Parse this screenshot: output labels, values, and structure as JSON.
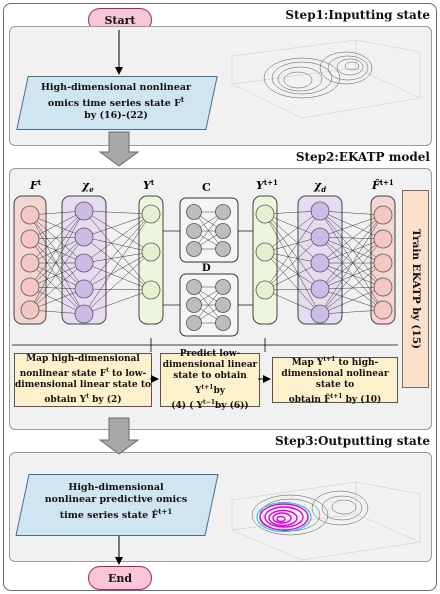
{
  "start_label": "Start",
  "end_label": "End",
  "step1": {
    "title": "Step1:Inputting state",
    "input_text": [
      "High-dimensional nonlinear",
      "omics time series state F",
      "by (16)-(22)"
    ],
    "input_sup": "t"
  },
  "step2": {
    "title": "Step2:EKATP model",
    "labels": {
      "ft": "F",
      "ft_sup": "t",
      "chi_e": "χ",
      "chi_e_sub": "e",
      "yt": "Y",
      "yt_sup": "t",
      "c": "C",
      "d": "D",
      "yt1": "Y",
      "yt1_sup": "t+1",
      "chi_d": "χ",
      "chi_d_sub": "d",
      "fhat": "F̂",
      "fhat_sup": "t+1"
    },
    "box1": [
      "Map high-dimensional",
      "nonlinear state F",
      "to low-",
      "dimensional linear state to",
      "obtain Y",
      "by (2)"
    ],
    "box2": [
      "Predict low-",
      "dimensional linear",
      "state to obtain Y",
      "by",
      "(4) ( Y",
      "by (6))"
    ],
    "box3": [
      "Map Y",
      "to high-",
      "dimensional nolinear state to",
      "obtain F̂",
      "by (10)"
    ],
    "sups": {
      "t": "t",
      "t1": "t+1",
      "tm1": "t−1"
    },
    "train": "Train EKATP by (15)"
  },
  "step3": {
    "title": "Step3:Outputting state",
    "output_text": [
      "High-dimensional",
      "nonlinear predictive omics",
      "time series state F̂"
    ],
    "output_sup": "t+1"
  },
  "colors": {
    "pink_fill": "#f5c6c2",
    "purple_fill": "#cbbbe6",
    "green_fill": "#e6f0cf",
    "gray_node": "#bdbdbd",
    "magenta": "#e000e0",
    "cyan": "#00c8d8"
  }
}
